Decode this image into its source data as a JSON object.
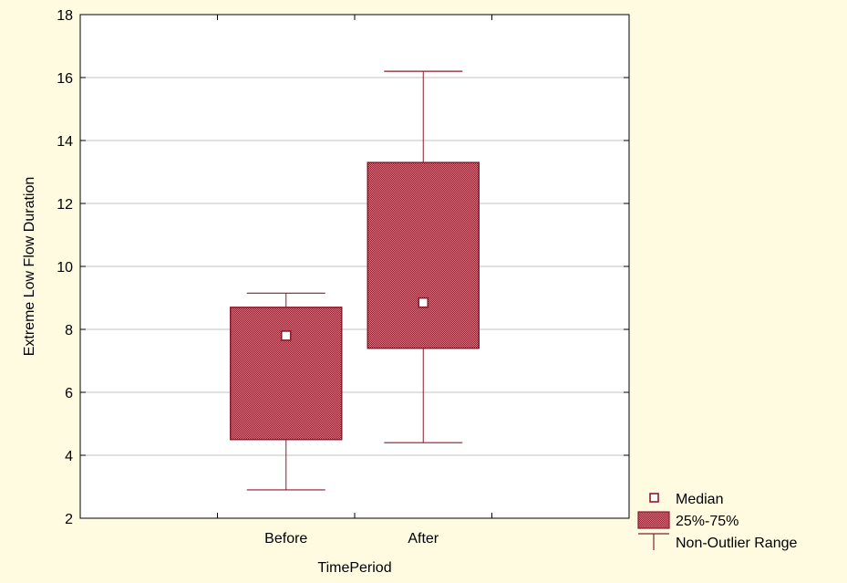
{
  "colors": {
    "background": "#fffbe0",
    "plot_background": "#ffffff",
    "box_fill": "#c28b8b",
    "box_stroke": "#8b1c2c",
    "grid": "#c0c0c0",
    "frame": "#000000"
  },
  "chart_data": {
    "type": "box",
    "title": "",
    "xlabel": "TimePeriod",
    "ylabel": "Extreme Low Flow Duration",
    "ylim": [
      2,
      18
    ],
    "yticks": [
      2,
      4,
      6,
      8,
      10,
      12,
      14,
      16,
      18
    ],
    "grid": true,
    "legend_position": "bottom-right",
    "categories": [
      "Before",
      "After"
    ],
    "boxes": [
      {
        "category": "Before",
        "whisker_low": 2.9,
        "q1": 4.5,
        "median": 7.8,
        "q3": 8.7,
        "whisker_high": 9.15
      },
      {
        "category": "After",
        "whisker_low": 4.4,
        "q1": 7.4,
        "median": 8.85,
        "q3": 13.3,
        "whisker_high": 16.2
      }
    ],
    "legend": [
      {
        "key": "median",
        "label": "Median"
      },
      {
        "key": "box",
        "label": "25%-75%"
      },
      {
        "key": "whisker",
        "label": "Non-Outlier Range"
      }
    ]
  }
}
